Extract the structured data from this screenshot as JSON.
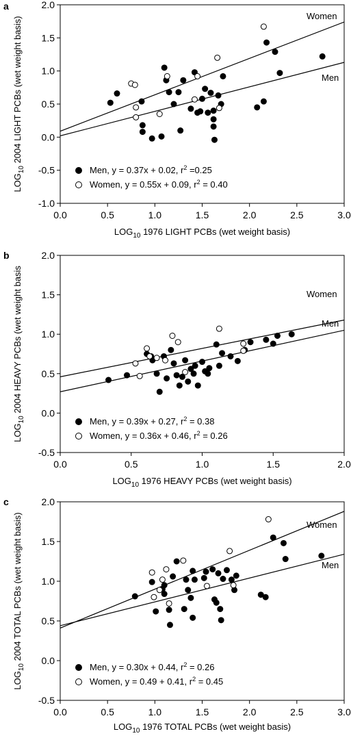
{
  "chart_data": [
    {
      "type": "scatter",
      "panel": "a",
      "xlabel": {
        "pre": "LOG",
        "sub": "10",
        "post": " 1976 LIGHT PCBs (wet weight basis)"
      },
      "ylabel": {
        "pre": "LOG",
        "sub": "10",
        "post": " 2004 LIGHT PCBs (wet weight basis)"
      },
      "xlim": [
        0.0,
        3.0
      ],
      "ylim": [
        -1.0,
        2.0
      ],
      "xticks": [
        "0.0",
        "0.5",
        "1.0",
        "1.5",
        "2.0",
        "2.5",
        "3.0"
      ],
      "yticks": [
        "-1.0",
        "-0.5",
        "0.0",
        "0.5",
        "1.0",
        "1.5",
        "2.0"
      ],
      "series": [
        {
          "name": "Men",
          "marker": "filled",
          "legend_prefix": "Men, y = 0.37x + 0.02, r",
          "legend_suffix": " =0.25",
          "fit": {
            "slope": 0.37,
            "intercept": 0.02
          },
          "line_label": "Men",
          "points": [
            [
              0.53,
              0.52
            ],
            [
              0.6,
              0.66
            ],
            [
              0.86,
              0.54
            ],
            [
              0.87,
              0.18
            ],
            [
              0.87,
              0.08
            ],
            [
              0.97,
              -0.02
            ],
            [
              1.07,
              0.01
            ],
            [
              1.1,
              1.05
            ],
            [
              1.12,
              0.86
            ],
            [
              1.15,
              0.68
            ],
            [
              1.2,
              0.5
            ],
            [
              1.25,
              0.68
            ],
            [
              1.27,
              0.1
            ],
            [
              1.3,
              0.86
            ],
            [
              1.38,
              0.43
            ],
            [
              1.42,
              0.98
            ],
            [
              1.45,
              0.37
            ],
            [
              1.48,
              0.39
            ],
            [
              1.5,
              0.58
            ],
            [
              1.53,
              0.73
            ],
            [
              1.56,
              0.37
            ],
            [
              1.59,
              0.67
            ],
            [
              1.62,
              0.4
            ],
            [
              1.62,
              0.27
            ],
            [
              1.62,
              0.16
            ],
            [
              1.63,
              -0.04
            ],
            [
              1.67,
              0.63
            ],
            [
              1.7,
              0.5
            ],
            [
              1.72,
              0.92
            ],
            [
              2.08,
              0.45
            ],
            [
              2.15,
              0.54
            ],
            [
              2.18,
              1.43
            ],
            [
              2.27,
              1.29
            ],
            [
              2.32,
              0.97
            ],
            [
              2.77,
              1.22
            ]
          ]
        },
        {
          "name": "Women",
          "marker": "open",
          "legend_prefix": "Women, y = 0.55x + 0.09, r",
          "legend_suffix": " = 0.40",
          "fit": {
            "slope": 0.55,
            "intercept": 0.09
          },
          "line_label": "Women",
          "points": [
            [
              0.75,
              0.81
            ],
            [
              0.79,
              0.79
            ],
            [
              0.8,
              0.3
            ],
            [
              0.8,
              0.45
            ],
            [
              1.05,
              0.35
            ],
            [
              1.13,
              0.92
            ],
            [
              1.42,
              0.57
            ],
            [
              1.45,
              0.92
            ],
            [
              1.66,
              1.2
            ],
            [
              1.68,
              0.44
            ],
            [
              2.15,
              1.67
            ]
          ]
        }
      ]
    },
    {
      "type": "scatter",
      "panel": "b",
      "xlabel": {
        "pre": "LOG",
        "sub": "10",
        "post": " 1976 HEAVY PCBs (wet weight basis)"
      },
      "ylabel": {
        "pre": "LOG",
        "sub": "10",
        "post": " 2004 HEAVY PCBs (wet weight basis"
      },
      "xlim": [
        0.0,
        2.0
      ],
      "ylim": [
        -0.5,
        2.0
      ],
      "xticks": [
        "0.0",
        "0.5",
        "1.0",
        "1.5",
        "2.0"
      ],
      "yticks": [
        "-0.5",
        "0.0",
        "0.5",
        "1.0",
        "1.5",
        "2.0"
      ],
      "series": [
        {
          "name": "Men",
          "marker": "filled",
          "legend_prefix": "Men, y = 0.39x + 0.27, r",
          "legend_suffix": " = 0.38",
          "fit": {
            "slope": 0.39,
            "intercept": 0.27
          },
          "line_label": "Men",
          "points": [
            [
              0.34,
              0.42
            ],
            [
              0.47,
              0.48
            ],
            [
              0.61,
              0.75
            ],
            [
              0.64,
              0.72
            ],
            [
              0.65,
              0.67
            ],
            [
              0.68,
              0.5
            ],
            [
              0.7,
              0.27
            ],
            [
              0.73,
              0.72
            ],
            [
              0.75,
              0.44
            ],
            [
              0.78,
              0.8
            ],
            [
              0.8,
              0.63
            ],
            [
              0.82,
              0.48
            ],
            [
              0.84,
              0.35
            ],
            [
              0.86,
              0.46
            ],
            [
              0.88,
              0.67
            ],
            [
              0.9,
              0.4
            ],
            [
              0.92,
              0.56
            ],
            [
              0.94,
              0.5
            ],
            [
              0.95,
              0.6
            ],
            [
              0.97,
              0.35
            ],
            [
              1.0,
              0.65
            ],
            [
              1.02,
              0.53
            ],
            [
              1.04,
              0.5
            ],
            [
              1.05,
              0.57
            ],
            [
              1.1,
              0.87
            ],
            [
              1.12,
              0.6
            ],
            [
              1.14,
              0.76
            ],
            [
              1.2,
              0.72
            ],
            [
              1.25,
              0.66
            ],
            [
              1.3,
              0.8
            ],
            [
              1.34,
              0.9
            ],
            [
              1.45,
              0.93
            ],
            [
              1.5,
              0.88
            ],
            [
              1.53,
              0.98
            ],
            [
              1.63,
              1.0
            ]
          ]
        },
        {
          "name": "Women",
          "marker": "open",
          "legend_prefix": "Women, y = 0.36x + 0.46, r",
          "legend_suffix": " = 0.26",
          "fit": {
            "slope": 0.36,
            "intercept": 0.46
          },
          "line_label": "Women",
          "points": [
            [
              0.53,
              0.63
            ],
            [
              0.56,
              0.47
            ],
            [
              0.61,
              0.82
            ],
            [
              0.63,
              0.72
            ],
            [
              0.68,
              0.7
            ],
            [
              0.74,
              0.67
            ],
            [
              0.79,
              0.98
            ],
            [
              0.83,
              0.9
            ],
            [
              0.88,
              0.52
            ],
            [
              1.12,
              1.07
            ],
            [
              1.29,
              0.88
            ],
            [
              1.29,
              0.79
            ]
          ]
        }
      ]
    },
    {
      "type": "scatter",
      "panel": "c",
      "xlabel": {
        "pre": "LOG",
        "sub": "10",
        "post": " 1976 TOTAL PCBs (wet weight basis)"
      },
      "ylabel": {
        "pre": "LOG",
        "sub": "10",
        "post": " 2004 TOTAL PCBs (wet weight basis)"
      },
      "xlim": [
        0.0,
        3.0
      ],
      "ylim": [
        -0.5,
        2.0
      ],
      "xticks": [
        "0.0",
        "0.5",
        "1.0",
        "1.5",
        "2.0",
        "2.5",
        "3.0"
      ],
      "yticks": [
        "-0.5",
        "0.0",
        "0.5",
        "1.0",
        "1.5",
        "2.0"
      ],
      "series": [
        {
          "name": "Men",
          "marker": "filled",
          "legend_prefix": "Men, y = 0.30x + 0.44, r",
          "legend_suffix": " = 0.26",
          "fit": {
            "slope": 0.3,
            "intercept": 0.44
          },
          "line_label": "Men",
          "points": [
            [
              0.79,
              0.81
            ],
            [
              0.97,
              0.99
            ],
            [
              1.01,
              0.62
            ],
            [
              1.08,
              0.9
            ],
            [
              1.1,
              0.95
            ],
            [
              1.1,
              0.84
            ],
            [
              1.15,
              0.64
            ],
            [
              1.16,
              0.45
            ],
            [
              1.19,
              1.06
            ],
            [
              1.23,
              1.25
            ],
            [
              1.31,
              0.65
            ],
            [
              1.33,
              1.02
            ],
            [
              1.35,
              0.89
            ],
            [
              1.38,
              0.79
            ],
            [
              1.4,
              0.54
            ],
            [
              1.4,
              1.13
            ],
            [
              1.42,
              1.02
            ],
            [
              1.52,
              1.04
            ],
            [
              1.54,
              1.12
            ],
            [
              1.61,
              1.15
            ],
            [
              1.63,
              0.77
            ],
            [
              1.65,
              0.73
            ],
            [
              1.67,
              1.1
            ],
            [
              1.69,
              0.65
            ],
            [
              1.7,
              0.51
            ],
            [
              1.72,
              1.03
            ],
            [
              1.76,
              1.14
            ],
            [
              1.81,
              1.02
            ],
            [
              1.84,
              0.89
            ],
            [
              1.86,
              1.07
            ],
            [
              2.12,
              0.83
            ],
            [
              2.17,
              0.8
            ],
            [
              2.25,
              1.55
            ],
            [
              2.36,
              1.48
            ],
            [
              2.38,
              1.28
            ],
            [
              2.76,
              1.32
            ]
          ]
        },
        {
          "name": "Women",
          "marker": "open",
          "legend_prefix": "Women, y = 0.49 + 0.41, r",
          "legend_suffix": " = 0.45",
          "fit": {
            "slope": 0.49,
            "intercept": 0.41
          },
          "line_label": "Women",
          "points": [
            [
              0.97,
              1.11
            ],
            [
              0.99,
              0.8
            ],
            [
              1.05,
              0.89
            ],
            [
              1.08,
              1.02
            ],
            [
              1.12,
              1.15
            ],
            [
              1.15,
              0.72
            ],
            [
              1.3,
              1.26
            ],
            [
              1.55,
              0.94
            ],
            [
              1.79,
              1.38
            ],
            [
              1.83,
              0.95
            ],
            [
              2.2,
              1.78
            ]
          ]
        }
      ]
    }
  ],
  "legend_sup": "2"
}
